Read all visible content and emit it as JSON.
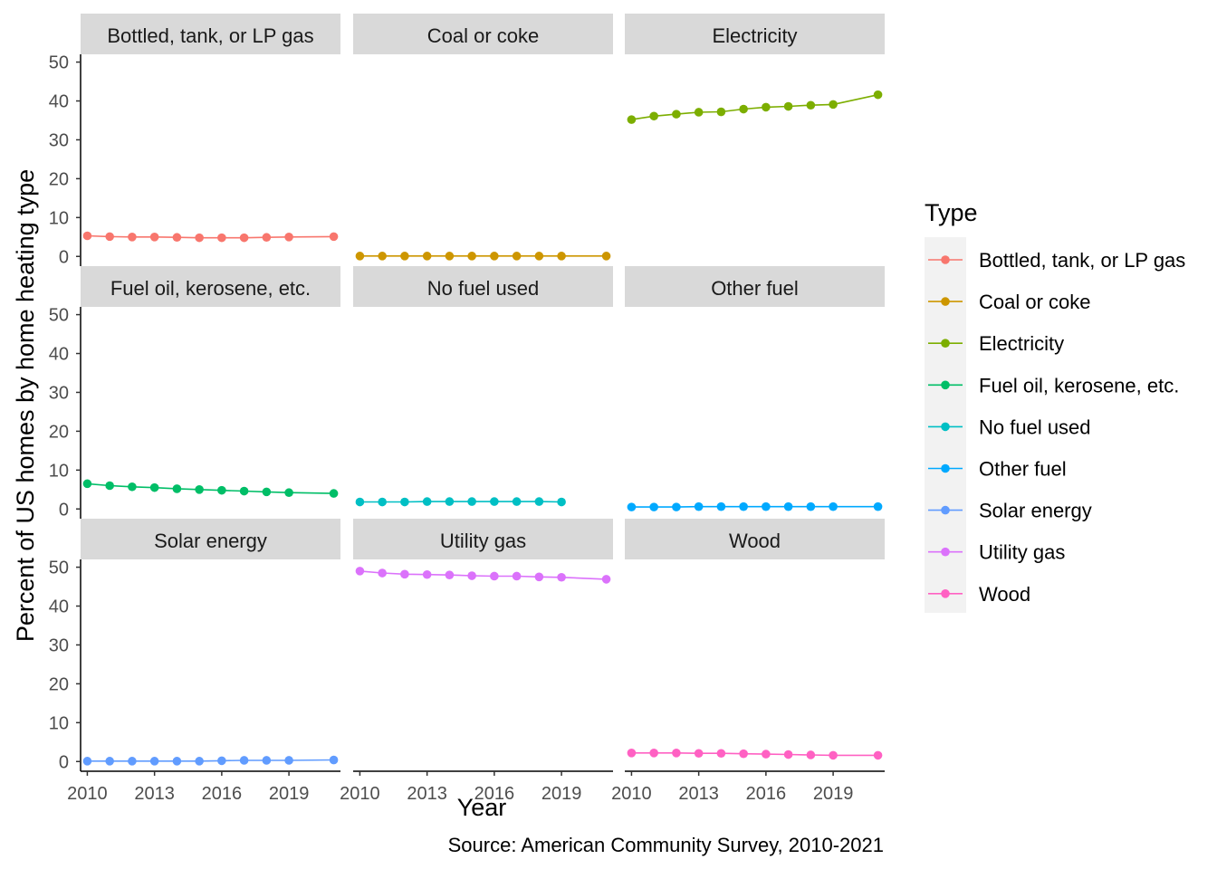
{
  "chart_data": {
    "type": "line",
    "xlabel": "Year",
    "ylabel": "Percent of US homes by home heating type",
    "caption": "Source: American Community Survey, 2010-2021",
    "legend_title": "Type",
    "legend_position": "right",
    "xlim": [
      2009.7,
      2021.3
    ],
    "ylim": [
      -2.5,
      52
    ],
    "x_ticks": [
      2010,
      2013,
      2016,
      2019
    ],
    "y_ticks": [
      0,
      10,
      20,
      30,
      40,
      50
    ],
    "grid": false,
    "facets": [
      {
        "name": "Bottled, tank, or LP gas",
        "color": "#F8766D",
        "x": [
          2010,
          2011,
          2012,
          2013,
          2014,
          2015,
          2016,
          2017,
          2018,
          2019,
          2021
        ],
        "y": [
          5.3,
          5.1,
          5.0,
          5.0,
          4.9,
          4.8,
          4.8,
          4.8,
          4.9,
          5.0,
          5.1
        ]
      },
      {
        "name": "Coal or coke",
        "color": "#CD9600",
        "x": [
          2010,
          2011,
          2012,
          2013,
          2014,
          2015,
          2016,
          2017,
          2018,
          2019,
          2021
        ],
        "y": [
          0.1,
          0.1,
          0.1,
          0.1,
          0.1,
          0.1,
          0.1,
          0.1,
          0.1,
          0.1,
          0.1
        ]
      },
      {
        "name": "Electricity",
        "color": "#7CAE00",
        "x": [
          2010,
          2011,
          2012,
          2013,
          2014,
          2015,
          2016,
          2017,
          2018,
          2019,
          2021
        ],
        "y": [
          35.2,
          36.1,
          36.6,
          37.1,
          37.2,
          37.9,
          38.4,
          38.6,
          38.9,
          39.1,
          41.6
        ]
      },
      {
        "name": "Fuel oil, kerosene, etc.",
        "color": "#00BE67",
        "x": [
          2010,
          2011,
          2012,
          2013,
          2014,
          2015,
          2016,
          2017,
          2018,
          2019,
          2021
        ],
        "y": [
          6.5,
          6.0,
          5.7,
          5.5,
          5.2,
          5.0,
          4.8,
          4.6,
          4.4,
          4.2,
          4.0
        ]
      },
      {
        "name": "No fuel used",
        "color": "#00BFC4",
        "x": [
          2010,
          2011,
          2012,
          2013,
          2014,
          2015,
          2016,
          2017,
          2018,
          2019
        ],
        "y": [
          1.8,
          1.8,
          1.8,
          1.9,
          1.9,
          1.9,
          1.9,
          1.9,
          1.9,
          1.8
        ]
      },
      {
        "name": "Other fuel",
        "color": "#00A9FF",
        "x": [
          2010,
          2011,
          2012,
          2013,
          2014,
          2015,
          2016,
          2017,
          2018,
          2019,
          2021
        ],
        "y": [
          0.5,
          0.5,
          0.5,
          0.6,
          0.6,
          0.6,
          0.6,
          0.6,
          0.6,
          0.6,
          0.6
        ]
      },
      {
        "name": "Solar energy",
        "color": "#619CFF",
        "x": [
          2010,
          2011,
          2012,
          2013,
          2014,
          2015,
          2016,
          2017,
          2018,
          2019,
          2021
        ],
        "y": [
          0.1,
          0.1,
          0.1,
          0.1,
          0.1,
          0.1,
          0.2,
          0.3,
          0.3,
          0.3,
          0.4
        ]
      },
      {
        "name": "Utility gas",
        "color": "#DB72FB",
        "x": [
          2010,
          2011,
          2012,
          2013,
          2014,
          2015,
          2016,
          2017,
          2018,
          2019,
          2021
        ],
        "y": [
          49.0,
          48.5,
          48.2,
          48.1,
          48.0,
          47.8,
          47.7,
          47.7,
          47.5,
          47.4,
          46.9
        ]
      },
      {
        "name": "Wood",
        "color": "#FF61C3",
        "x": [
          2010,
          2011,
          2012,
          2013,
          2014,
          2015,
          2016,
          2017,
          2018,
          2019,
          2021
        ],
        "y": [
          2.2,
          2.2,
          2.2,
          2.1,
          2.1,
          2.0,
          1.9,
          1.8,
          1.7,
          1.6,
          1.6
        ]
      }
    ]
  }
}
